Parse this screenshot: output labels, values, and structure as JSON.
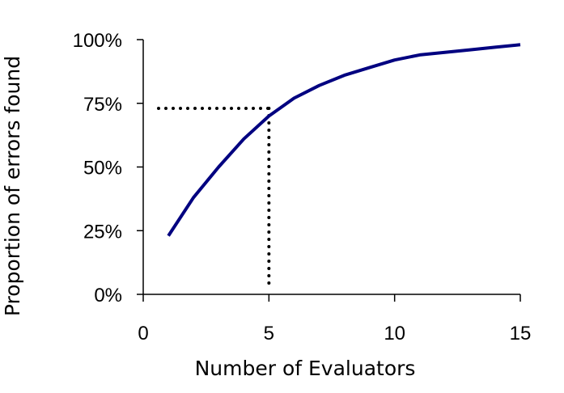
{
  "chart_data": {
    "type": "line",
    "title": "",
    "xlabel": "Number of Evaluators",
    "ylabel": "Proportion of errors found",
    "xlim": [
      0,
      15
    ],
    "ylim": [
      0,
      100
    ],
    "x_ticks": [
      0,
      5,
      10,
      15
    ],
    "x_tick_labels": [
      "0",
      "5",
      "10",
      "15"
    ],
    "y_ticks": [
      0,
      25,
      50,
      75,
      100
    ],
    "y_tick_labels": [
      "0%",
      "25%",
      "50%",
      "75%",
      "100%"
    ],
    "grid": false,
    "legend": "none",
    "series": [
      {
        "color": "#000080",
        "x": [
          1,
          2,
          3,
          4,
          5,
          6,
          7,
          8,
          9,
          10,
          11,
          12,
          13,
          14,
          15
        ],
        "values": [
          23,
          38,
          50,
          61,
          70,
          77,
          82,
          86,
          89,
          92,
          94,
          95,
          96,
          97,
          98
        ]
      }
    ],
    "annotation": {
      "x": 5,
      "y": 73,
      "style": "dotted",
      "color": "#000000"
    }
  }
}
